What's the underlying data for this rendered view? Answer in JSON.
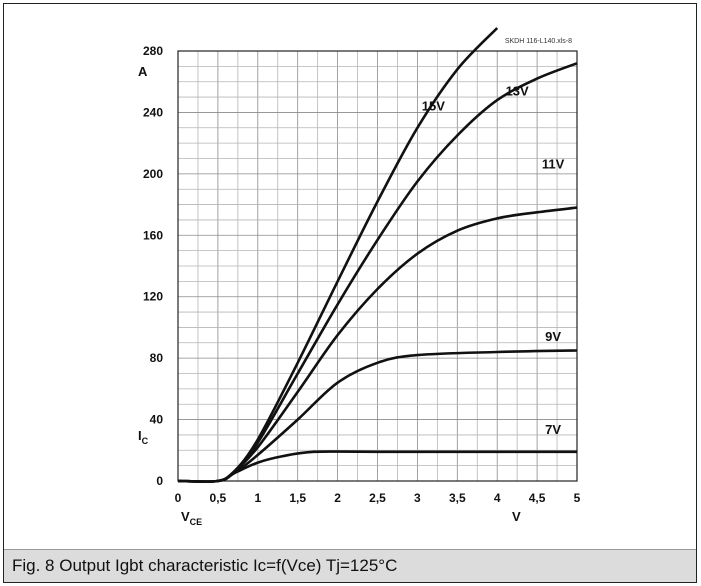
{
  "caption": "Fig. 8 Output Igbt characteristic Ic=f(Vce) Tj=125°C",
  "chart_data": {
    "type": "line",
    "reference": "SKDH 116-L140.xls-8",
    "y_unit": "A",
    "y_label_main": "I",
    "y_label_sub": "C",
    "x_label_main": "V",
    "x_label_sub": "CE",
    "x_unit": "V",
    "xlim": [
      0,
      5
    ],
    "ylim": [
      0,
      280
    ],
    "x_ticks": [
      "0",
      "0,5",
      "1",
      "1,5",
      "2",
      "2,5",
      "3",
      "3,5",
      "4",
      "4,5",
      "5"
    ],
    "y_ticks": [
      "0",
      "40",
      "80",
      "120",
      "160",
      "200",
      "240",
      "280"
    ],
    "grid": true,
    "series": [
      {
        "name": "7V",
        "x": [
          0,
          0.5,
          0.7,
          1.0,
          1.3,
          1.7,
          2.5,
          5.0
        ],
        "y": [
          0,
          0,
          5,
          12,
          16,
          19,
          19,
          19
        ]
      },
      {
        "name": "9V",
        "x": [
          0,
          0.5,
          0.7,
          1.0,
          1.5,
          2.0,
          2.5,
          3.0,
          4.0,
          5.0
        ],
        "y": [
          0,
          0,
          5,
          17,
          40,
          64,
          77,
          82,
          84,
          85
        ]
      },
      {
        "name": "11V",
        "x": [
          0,
          0.5,
          0.7,
          1.0,
          1.5,
          2.0,
          2.5,
          3.0,
          3.5,
          4.0,
          4.5,
          5.0
        ],
        "y": [
          0,
          0,
          6,
          22,
          58,
          95,
          125,
          148,
          163,
          171,
          175,
          178
        ]
      },
      {
        "name": "13V",
        "x": [
          0,
          0.5,
          0.7,
          1.0,
          1.5,
          2.0,
          2.5,
          3.0,
          3.5,
          4.0,
          4.5,
          5.0
        ],
        "y": [
          0,
          0,
          6,
          25,
          70,
          115,
          157,
          195,
          225,
          248,
          262,
          272
        ]
      },
      {
        "name": "15V",
        "x": [
          0,
          0.5,
          0.7,
          1.0,
          1.5,
          2.0,
          2.5,
          3.0,
          3.5,
          4.0
        ],
        "y": [
          0,
          0,
          6,
          27,
          77,
          130,
          182,
          230,
          268,
          295
        ]
      }
    ]
  }
}
